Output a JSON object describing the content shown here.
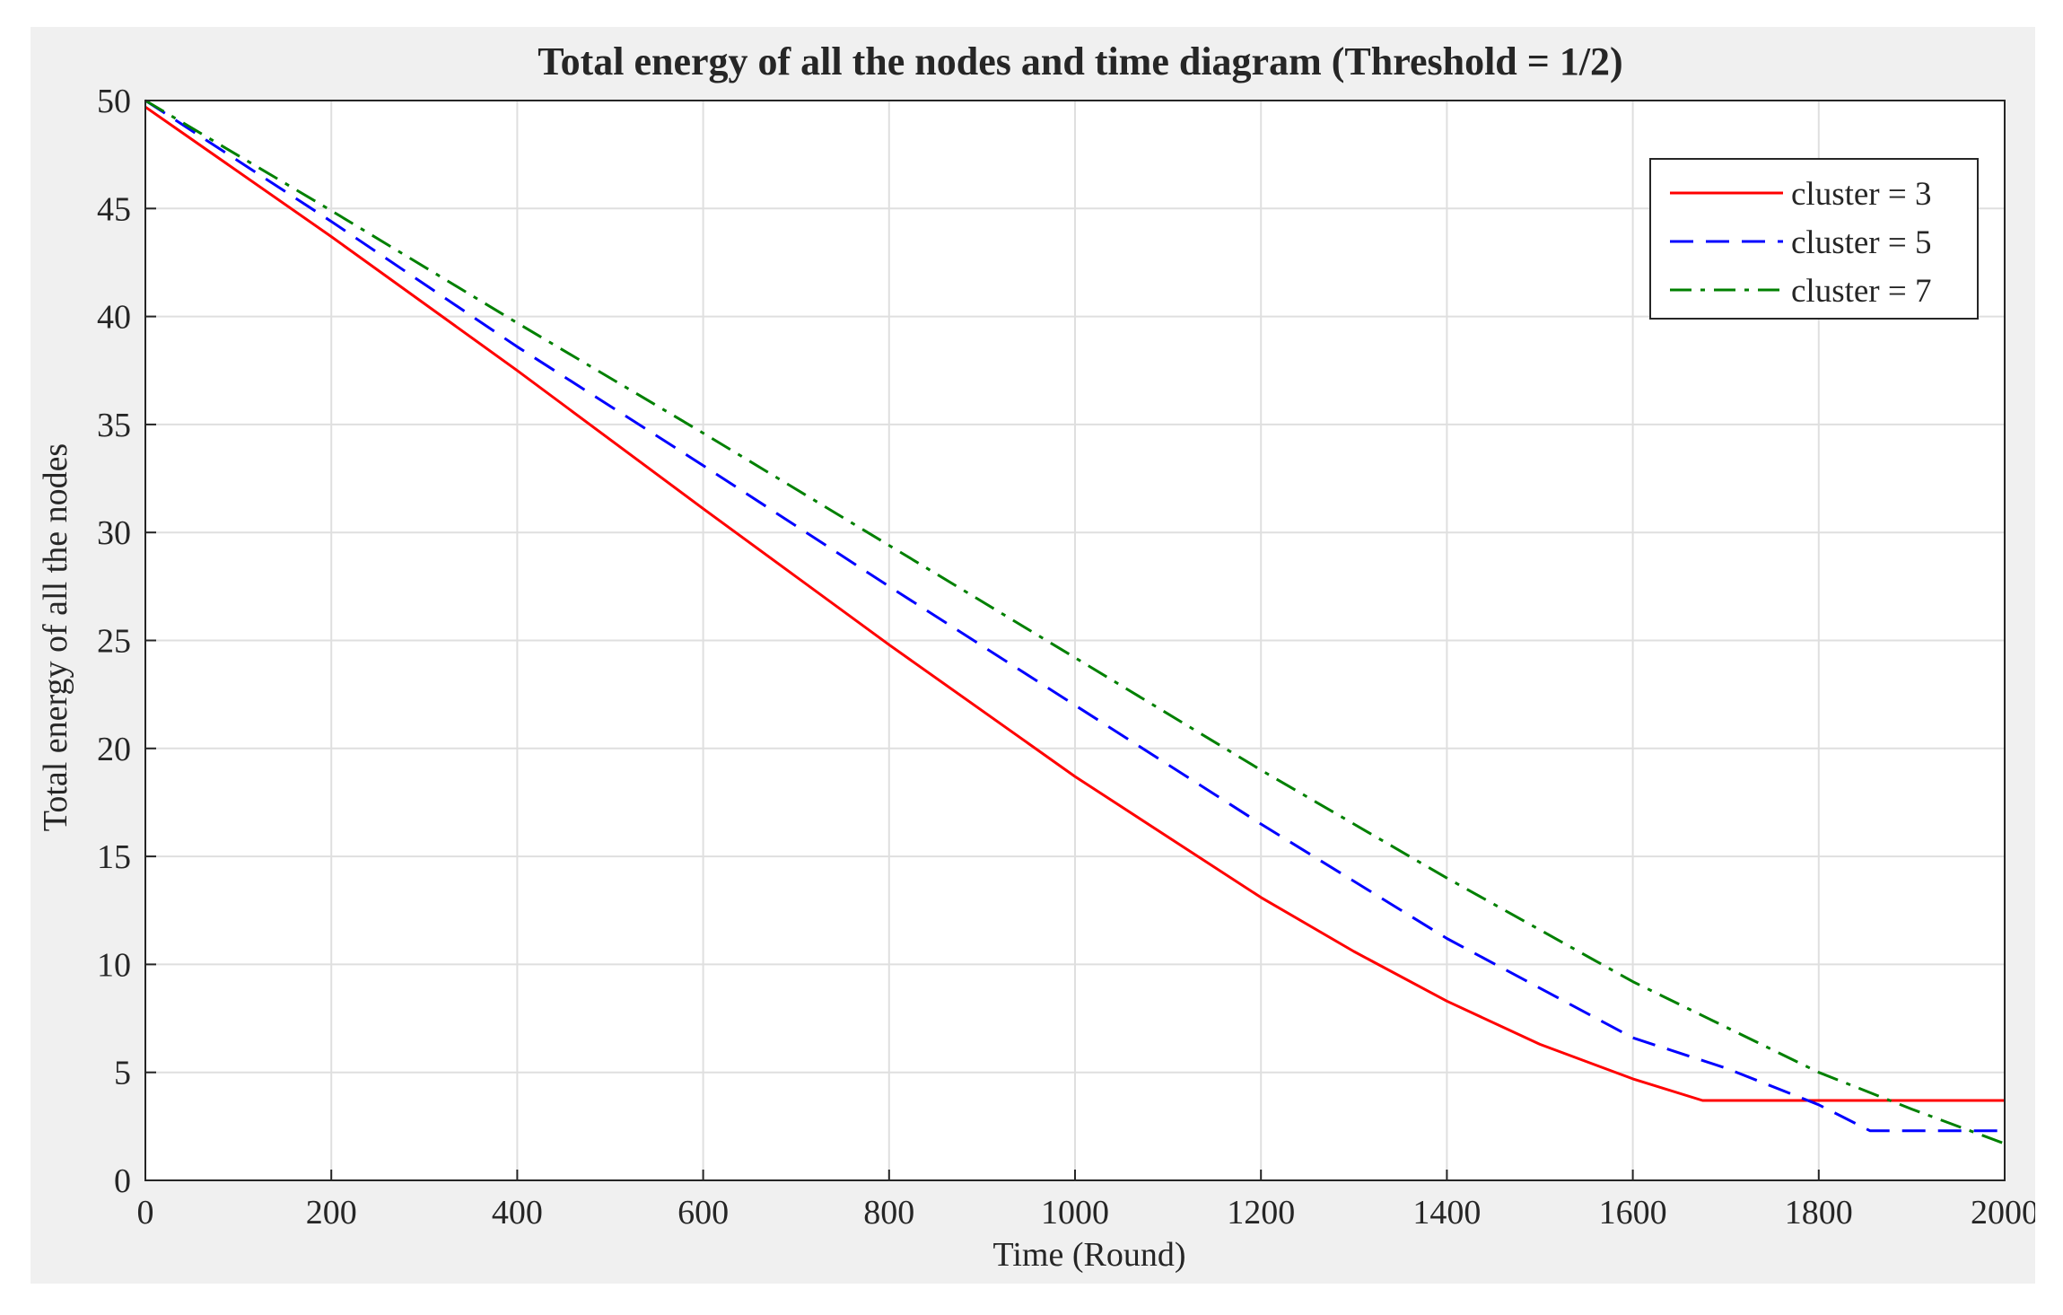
{
  "chart_data": {
    "type": "line",
    "title": "Total energy of all the nodes and time diagram (Threshold = 1/2)",
    "xlabel": "Time (Round)",
    "ylabel": "Total energy of all the nodes",
    "xlim": [
      0,
      2000
    ],
    "ylim": [
      0,
      50
    ],
    "grid": true,
    "legend_position": "top-right",
    "xticks": [
      0,
      200,
      400,
      600,
      800,
      1000,
      1200,
      1400,
      1600,
      1800,
      2000
    ],
    "yticks": [
      0,
      5,
      10,
      15,
      20,
      25,
      30,
      35,
      40,
      45,
      50
    ],
    "series": [
      {
        "name": "cluster = 3",
        "color": "#ff0000",
        "style": "solid",
        "x": [
          0,
          200,
          400,
          600,
          800,
          1000,
          1200,
          1300,
          1400,
          1500,
          1600,
          1675,
          2000
        ],
        "y": [
          49.7,
          43.7,
          37.5,
          31.1,
          24.8,
          18.7,
          13.1,
          10.6,
          8.3,
          6.3,
          4.7,
          3.7,
          3.7
        ]
      },
      {
        "name": "cluster = 5",
        "color": "#0000ff",
        "style": "dashed",
        "x": [
          0,
          200,
          400,
          600,
          800,
          1000,
          1200,
          1400,
          1600,
          1700,
          1800,
          1855,
          2000
        ],
        "y": [
          50.0,
          44.4,
          38.6,
          33.1,
          27.5,
          22.0,
          16.5,
          11.2,
          6.6,
          5.2,
          3.5,
          2.3,
          2.3
        ]
      },
      {
        "name": "cluster = 7",
        "color": "#008000",
        "style": "dashdot",
        "x": [
          0,
          200,
          400,
          600,
          800,
          1000,
          1200,
          1400,
          1600,
          1800,
          1900,
          2000
        ],
        "y": [
          50.0,
          44.9,
          39.7,
          34.6,
          29.4,
          24.2,
          19.0,
          14.0,
          9.2,
          5.0,
          3.3,
          1.7
        ]
      }
    ]
  }
}
